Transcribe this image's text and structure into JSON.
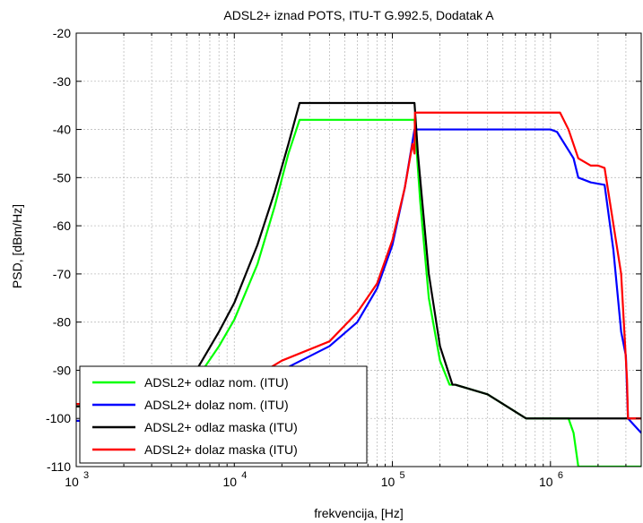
{
  "chart_data": {
    "type": "line",
    "title": "ADSL2+ iznad POTS, ITU-T G.992.5, Dodatak A",
    "xlabel": "frekvencija, [Hz]",
    "ylabel": "PSD, [dBm/Hz]",
    "xscale": "log",
    "xlim": [
      1000,
      3750000
    ],
    "ylim": [
      -110,
      -20
    ],
    "grid": true,
    "legend_position": "bottom-left",
    "x_ticks": [
      {
        "value": 1000,
        "base": "10",
        "exp": "3"
      },
      {
        "value": 10000,
        "base": "10",
        "exp": "4"
      },
      {
        "value": 100000,
        "base": "10",
        "exp": "5"
      },
      {
        "value": 1000000,
        "base": "10",
        "exp": "6"
      }
    ],
    "y_ticks": [
      "-20",
      "-30",
      "-40",
      "-50",
      "-60",
      "-70",
      "-80",
      "-90",
      "-100",
      "-110"
    ],
    "series": [
      {
        "name": "ADSL2+ odlaz nom. (ITU)",
        "color": "#00ff00",
        "x": [
          1000,
          4000,
          6000,
          8000,
          10000,
          14000,
          18000,
          22000,
          25875,
          100000,
          138000,
          150000,
          170000,
          200000,
          230000,
          250000,
          400000,
          700000,
          1000000,
          1300000,
          1400000,
          1500000,
          3750000
        ],
        "y": [
          -97.5,
          -97.5,
          -91,
          -85,
          -79.5,
          -68,
          -56,
          -45,
          -38,
          -38,
          -38,
          -55,
          -75,
          -88,
          -93,
          -93,
          -95,
          -100,
          -100,
          -100,
          -103,
          -110,
          -110
        ]
      },
      {
        "name": "ADSL2+ dolaz nom. (ITU)",
        "color": "#0000ff",
        "x": [
          1000,
          7000,
          20000,
          40000,
          60000,
          80000,
          100000,
          120000,
          138000,
          140000,
          400000,
          1000000,
          1100000,
          1400000,
          1500000,
          1800000,
          2200000,
          2500000,
          2800000,
          3000000,
          3093000,
          3750000
        ],
        "y": [
          -100.5,
          -100.5,
          -90,
          -85,
          -80,
          -73,
          -64,
          -52,
          -40,
          -40,
          -40,
          -40,
          -40.5,
          -46,
          -50,
          -51,
          -51.5,
          -65,
          -82,
          -87,
          -100,
          -103
        ]
      },
      {
        "name": "ADSL2+ odlaz maska (ITU)",
        "color": "#000000",
        "x": [
          1000,
          4000,
          6000,
          8000,
          10000,
          14000,
          18000,
          22000,
          25875,
          100000,
          138000,
          145000,
          170000,
          200000,
          240000,
          250000,
          400000,
          700000,
          1000000,
          3750000
        ],
        "y": [
          -97.5,
          -97.5,
          -89,
          -82,
          -76,
          -64,
          -53,
          -43,
          -34.5,
          -34.5,
          -34.5,
          -45,
          -70,
          -85,
          -93,
          -93,
          -95,
          -100,
          -100,
          -100
        ]
      },
      {
        "name": "ADSL2+ dolaz maska (ITU)",
        "color": "#ff0000",
        "x": [
          1000,
          7000,
          20000,
          40000,
          60000,
          80000,
          100000,
          120000,
          134000,
          138000,
          139000,
          400000,
          1000000,
          1150000,
          1300000,
          1500000,
          1800000,
          2000000,
          2200000,
          2800000,
          3050000,
          3093000,
          3750000
        ],
        "y": [
          -97,
          -97,
          -88,
          -84,
          -78,
          -72,
          -63,
          -52,
          -43,
          -45,
          -36.5,
          -36.5,
          -36.5,
          -36.5,
          -40,
          -46,
          -47.5,
          -47.5,
          -48,
          -70,
          -92,
          -100,
          -100
        ]
      }
    ]
  }
}
